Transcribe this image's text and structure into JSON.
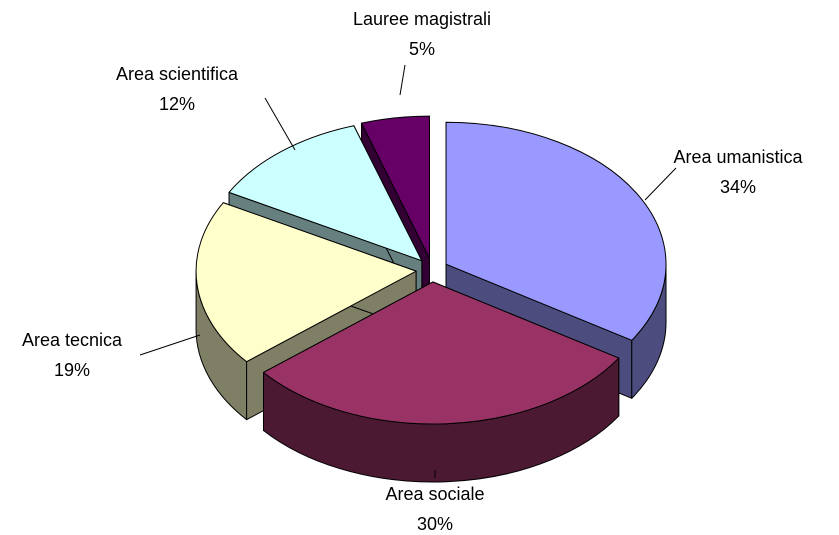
{
  "chart_data": {
    "type": "pie",
    "style": "3d-exploded",
    "categories": [
      "Area umanistica",
      "Area sociale",
      "Area tecnica",
      "Area scientifica",
      "Lauree magistrali"
    ],
    "values": [
      34,
      30,
      19,
      12,
      5
    ],
    "value_labels": [
      "34%",
      "30%",
      "19%",
      "12%",
      "5%"
    ],
    "colors": [
      "#9999ff",
      "#993366",
      "#ffffcc",
      "#ccffff",
      "#660066"
    ]
  }
}
